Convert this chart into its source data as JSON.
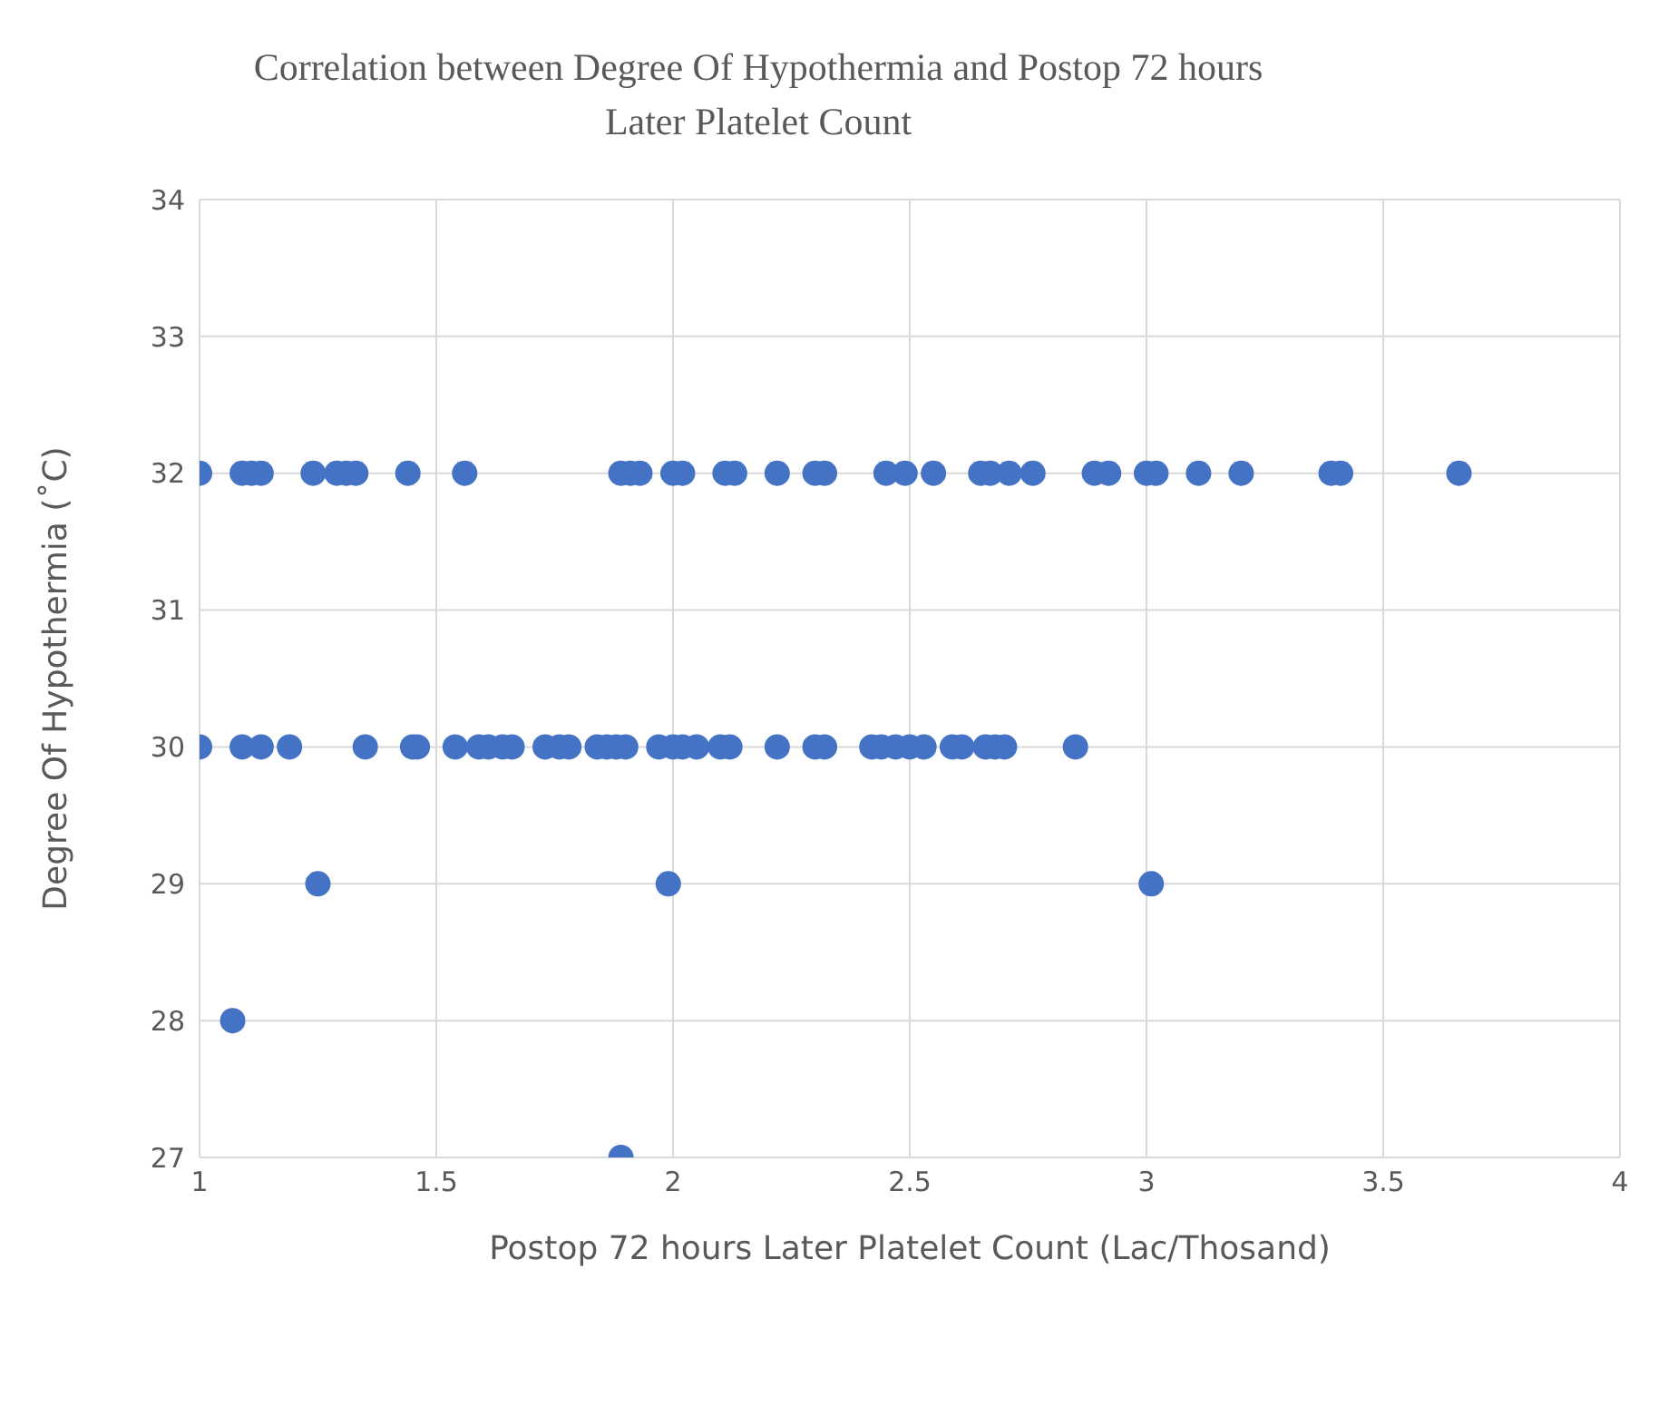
{
  "chart_data": {
    "type": "scatter",
    "title": "Correlation between Degree Of Hypothermia and Postop 72 hours Later Platelet Count",
    "xlabel": "Postop 72 hours Later Platelet Count (Lac/Thosand)",
    "ylabel": "Degree Of Hypothermia (˚C)",
    "x": [
      1.0,
      1.09,
      1.11,
      1.13,
      1.24,
      1.29,
      1.31,
      1.33,
      1.44,
      1.56,
      1.89,
      1.91,
      1.93,
      2.0,
      2.02,
      2.11,
      2.13,
      2.22,
      2.3,
      2.32,
      2.45,
      2.49,
      2.55,
      2.65,
      2.67,
      2.71,
      2.76,
      2.89,
      2.92,
      3.0,
      3.02,
      3.11,
      3.2,
      3.39,
      3.41,
      3.66,
      1.0,
      1.09,
      1.13,
      1.19,
      1.35,
      1.45,
      1.46,
      1.54,
      1.59,
      1.61,
      1.64,
      1.66,
      1.73,
      1.76,
      1.78,
      1.84,
      1.86,
      1.88,
      1.9,
      1.97,
      2.0,
      2.02,
      2.05,
      2.1,
      2.12,
      2.22,
      2.3,
      2.32,
      2.42,
      2.44,
      2.47,
      2.5,
      2.53,
      2.59,
      2.61,
      2.66,
      2.68,
      2.7,
      2.85,
      1.07,
      1.25,
      1.99,
      3.01,
      1.89
    ],
    "series": [
      {
        "color": "#4472c4",
        "values": [
          32,
          32,
          32,
          32,
          32,
          32,
          32,
          32,
          32,
          32,
          32,
          32,
          32,
          32,
          32,
          32,
          32,
          32,
          32,
          32,
          32,
          32,
          32,
          32,
          32,
          32,
          32,
          32,
          32,
          32,
          32,
          32,
          32,
          32,
          32,
          32,
          30,
          30,
          30,
          30,
          30,
          30,
          30,
          30,
          30,
          30,
          30,
          30,
          30,
          30,
          30,
          30,
          30,
          30,
          30,
          30,
          30,
          30,
          30,
          30,
          30,
          30,
          30,
          30,
          30,
          30,
          30,
          30,
          30,
          30,
          30,
          30,
          30,
          30,
          30,
          28,
          29,
          29,
          29,
          27
        ]
      }
    ],
    "xlim": [
      1,
      4
    ],
    "xticks": [
      1,
      1.5,
      2,
      2.5,
      3,
      3.5,
      4
    ],
    "ylim": [
      27,
      34
    ],
    "yticks": [
      27,
      28,
      29,
      30,
      31,
      32,
      33,
      34
    ],
    "grid": true,
    "legend": false,
    "marker": "circle"
  }
}
